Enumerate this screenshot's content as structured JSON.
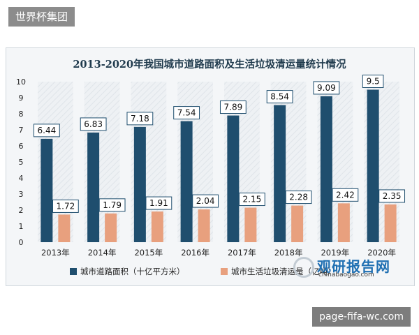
{
  "watermark_top_left": "世界杯集团",
  "watermark_bottom_right": "page-fifa-wc.com",
  "logo": {
    "main": "观研报告网",
    "sub": "chinabaogao.com"
  },
  "colors": {
    "series1": "#1f4e6e",
    "series2": "#e8a07e",
    "label_border": "#1f4e6e",
    "plot_bg": "#f4f6f8"
  },
  "chart_data": {
    "type": "bar",
    "title": "2013-2020年我国城市道路面积及生活垃圾清运量统计情况",
    "categories": [
      "2013年",
      "2014年",
      "2015年",
      "2016年",
      "2017年",
      "2018年",
      "2019年",
      "2020年"
    ],
    "series": [
      {
        "name": "城市道路面积（十亿平方米）",
        "values": [
          6.44,
          6.83,
          7.18,
          7.54,
          7.89,
          8.54,
          9.09,
          9.5
        ],
        "labels": [
          "6.44",
          "6.83",
          "7.18",
          "7.54",
          "7.89",
          "8.54",
          "9.09",
          "9.5"
        ]
      },
      {
        "name": "城市生活垃圾清运量（亿吨）",
        "values": [
          1.72,
          1.79,
          1.91,
          2.04,
          2.15,
          2.28,
          2.42,
          2.35
        ],
        "labels": [
          "1.72",
          "1.79",
          "1.91",
          "2.04",
          "2.15",
          "2.28",
          "2.42",
          "2.35"
        ]
      }
    ],
    "ylim": [
      0,
      10
    ],
    "yticks": [
      "0",
      "1",
      "2",
      "3",
      "4",
      "5",
      "6",
      "7",
      "8",
      "9",
      "10"
    ],
    "legend_position": "bottom",
    "grid": false
  }
}
